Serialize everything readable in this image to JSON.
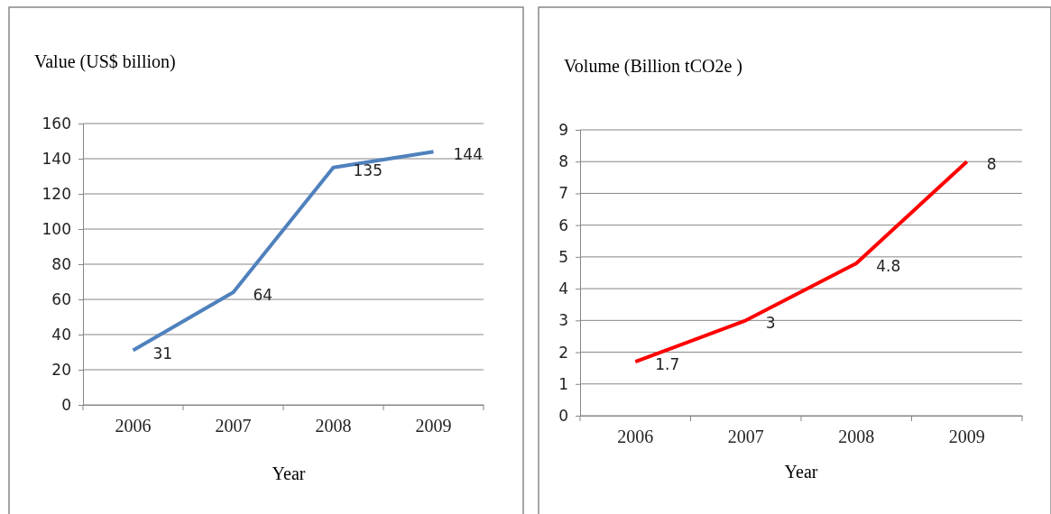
{
  "chart_data": [
    {
      "type": "line",
      "title": "Value (US$ billion)",
      "xlabel": "Year",
      "categories": [
        "2006",
        "2007",
        "2008",
        "2009"
      ],
      "series": [
        {
          "color": "#4f81bd",
          "values": [
            31,
            64,
            135,
            144
          ]
        }
      ],
      "ylim": [
        0,
        160
      ],
      "yticks": [
        0,
        20,
        40,
        60,
        80,
        100,
        120,
        140,
        160
      ],
      "grid": "y",
      "data_labels": true,
      "marker": "none",
      "line_style": "solid"
    },
    {
      "type": "line",
      "title": "Volume (Billion tCO2e )",
      "xlabel": "Year",
      "categories": [
        "2006",
        "2007",
        "2008",
        "2009"
      ],
      "series": [
        {
          "color": "#ff0000",
          "values": [
            1.7,
            3,
            4.8,
            8
          ]
        }
      ],
      "ylim": [
        0,
        9
      ],
      "yticks": [
        0,
        1,
        2,
        3,
        4,
        5,
        6,
        7,
        8,
        9
      ],
      "grid": "y",
      "data_labels": true,
      "marker": "none",
      "line_style": "solid"
    }
  ]
}
